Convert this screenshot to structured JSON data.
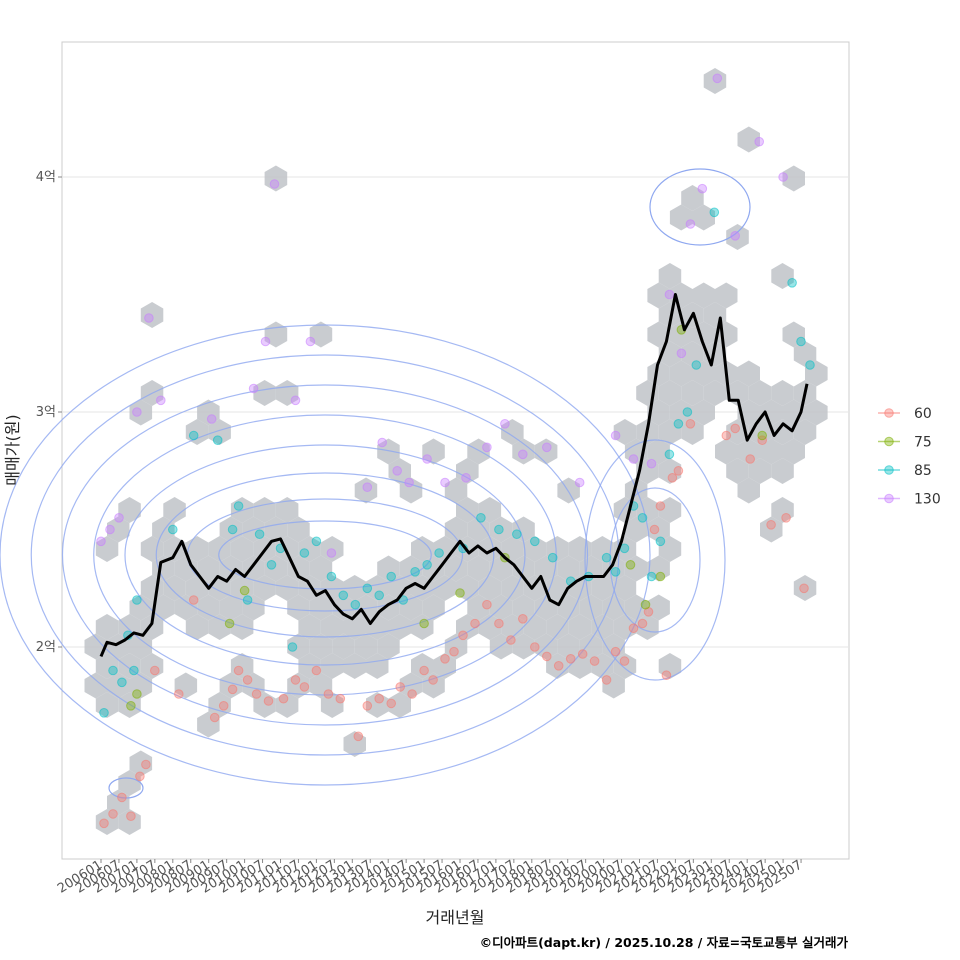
{
  "chart_data": {
    "type": "scatter",
    "title": "",
    "xlabel": "거래년월",
    "ylabel": "매매가(원)",
    "caption": "©디아파트(dapt.kr) / 2025.10.28 / 자료=국토교통부 실거래가",
    "xlim": [
      "2006-01",
      "2025-12"
    ],
    "ylim": [
      1.14,
      4.6
    ],
    "x_ticks": [
      "200601",
      "200607",
      "200701",
      "200707",
      "200801",
      "200807",
      "200901",
      "200907",
      "201001",
      "201007",
      "201101",
      "201107",
      "201201",
      "201207",
      "201301",
      "201307",
      "201401",
      "201407",
      "201501",
      "201507",
      "201601",
      "201607",
      "201701",
      "201707",
      "201801",
      "201807",
      "201901",
      "201907",
      "202001",
      "202007",
      "202101",
      "202107",
      "202201",
      "202207",
      "202301",
      "202307",
      "202401",
      "202407",
      "202501",
      "202507"
    ],
    "y_ticks": [
      {
        "value": 2,
        "label": "2억"
      },
      {
        "value": 3,
        "label": "3억"
      },
      {
        "value": 4,
        "label": "4억"
      }
    ],
    "grid": true,
    "legend": {
      "position": "right",
      "entries": [
        {
          "label": "60",
          "color": "#F8766D"
        },
        {
          "label": "75",
          "color": "#7CAE00"
        },
        {
          "label": "85",
          "color": "#00BFC4"
        },
        {
          "label": "130",
          "color": "#C77CFF"
        }
      ]
    },
    "layers": {
      "hexbin_color": "#BFC3C8",
      "contour_color": "#8FA8F0",
      "trend_color": "#000000"
    },
    "series": [
      {
        "name": "60",
        "points": [
          [
            "2006-02",
            1.25
          ],
          [
            "2006-05",
            1.29
          ],
          [
            "2006-08",
            1.36
          ],
          [
            "2006-11",
            1.28
          ],
          [
            "2007-02",
            1.45
          ],
          [
            "2007-04",
            1.5
          ],
          [
            "2007-07",
            1.9
          ],
          [
            "2008-03",
            1.8
          ],
          [
            "2008-08",
            2.2
          ],
          [
            "2009-03",
            1.7
          ],
          [
            "2009-06",
            1.75
          ],
          [
            "2009-09",
            1.82
          ],
          [
            "2009-11",
            1.9
          ],
          [
            "2010-02",
            1.86
          ],
          [
            "2010-05",
            1.8
          ],
          [
            "2010-09",
            1.77
          ],
          [
            "2011-02",
            1.78
          ],
          [
            "2011-06",
            1.86
          ],
          [
            "2011-09",
            1.83
          ],
          [
            "2012-01",
            1.9
          ],
          [
            "2012-05",
            1.8
          ],
          [
            "2012-09",
            1.78
          ],
          [
            "2013-03",
            1.62
          ],
          [
            "2013-06",
            1.75
          ],
          [
            "2013-10",
            1.78
          ],
          [
            "2014-02",
            1.76
          ],
          [
            "2014-05",
            1.83
          ],
          [
            "2014-09",
            1.8
          ],
          [
            "2015-01",
            1.9
          ],
          [
            "2015-04",
            1.86
          ],
          [
            "2015-08",
            1.95
          ],
          [
            "2015-11",
            1.98
          ],
          [
            "2016-02",
            2.05
          ],
          [
            "2016-06",
            2.1
          ],
          [
            "2016-10",
            2.18
          ],
          [
            "2017-02",
            2.1
          ],
          [
            "2017-06",
            2.03
          ],
          [
            "2017-10",
            2.12
          ],
          [
            "2018-02",
            2.0
          ],
          [
            "2018-06",
            1.96
          ],
          [
            "2018-10",
            1.92
          ],
          [
            "2019-02",
            1.95
          ],
          [
            "2019-06",
            1.97
          ],
          [
            "2019-10",
            1.94
          ],
          [
            "2020-02",
            1.86
          ],
          [
            "2020-05",
            1.98
          ],
          [
            "2020-08",
            1.94
          ],
          [
            "2020-11",
            2.08
          ],
          [
            "2021-02",
            2.1
          ],
          [
            "2021-04",
            2.15
          ],
          [
            "2021-06",
            2.5
          ],
          [
            "2021-08",
            2.6
          ],
          [
            "2021-10",
            1.88
          ],
          [
            "2021-12",
            2.72
          ],
          [
            "2022-02",
            2.75
          ],
          [
            "2022-06",
            2.95
          ],
          [
            "2023-06",
            2.9
          ],
          [
            "2023-09",
            2.93
          ],
          [
            "2024-02",
            2.8
          ],
          [
            "2024-06",
            2.88
          ],
          [
            "2024-09",
            2.52
          ],
          [
            "2025-02",
            2.55
          ],
          [
            "2025-08",
            2.25
          ]
        ]
      },
      {
        "name": "75",
        "points": [
          [
            "2006-11",
            1.75
          ],
          [
            "2007-01",
            1.8
          ],
          [
            "2009-08",
            2.1
          ],
          [
            "2010-01",
            2.24
          ],
          [
            "2015-01",
            2.1
          ],
          [
            "2016-01",
            2.23
          ],
          [
            "2017-04",
            2.38
          ],
          [
            "2020-10",
            2.35
          ],
          [
            "2021-03",
            2.18
          ],
          [
            "2021-08",
            2.3
          ],
          [
            "2022-03",
            3.35
          ],
          [
            "2024-06",
            2.9
          ]
        ]
      },
      {
        "name": "85",
        "points": [
          [
            "2006-02",
            1.72
          ],
          [
            "2006-05",
            1.9
          ],
          [
            "2006-08",
            1.85
          ],
          [
            "2006-10",
            2.05
          ],
          [
            "2006-12",
            1.9
          ],
          [
            "2007-01",
            2.2
          ],
          [
            "2008-01",
            2.5
          ],
          [
            "2008-08",
            2.9
          ],
          [
            "2009-04",
            2.88
          ],
          [
            "2009-09",
            2.5
          ],
          [
            "2009-11",
            2.6
          ],
          [
            "2010-02",
            2.2
          ],
          [
            "2010-06",
            2.48
          ],
          [
            "2010-10",
            2.35
          ],
          [
            "2011-01",
            2.42
          ],
          [
            "2011-05",
            2.0
          ],
          [
            "2011-09",
            2.4
          ],
          [
            "2012-01",
            2.45
          ],
          [
            "2012-06",
            2.3
          ],
          [
            "2012-10",
            2.22
          ],
          [
            "2013-02",
            2.18
          ],
          [
            "2013-06",
            2.25
          ],
          [
            "2013-10",
            2.22
          ],
          [
            "2014-02",
            2.3
          ],
          [
            "2014-06",
            2.2
          ],
          [
            "2014-10",
            2.32
          ],
          [
            "2015-02",
            2.35
          ],
          [
            "2015-06",
            2.4
          ],
          [
            "2016-02",
            2.42
          ],
          [
            "2016-08",
            2.55
          ],
          [
            "2017-02",
            2.5
          ],
          [
            "2017-08",
            2.48
          ],
          [
            "2018-02",
            2.45
          ],
          [
            "2018-08",
            2.38
          ],
          [
            "2019-02",
            2.28
          ],
          [
            "2019-08",
            2.3
          ],
          [
            "2020-02",
            2.38
          ],
          [
            "2020-05",
            2.32
          ],
          [
            "2020-08",
            2.42
          ],
          [
            "2020-11",
            2.6
          ],
          [
            "2021-02",
            2.55
          ],
          [
            "2021-05",
            2.3
          ],
          [
            "2021-08",
            2.45
          ],
          [
            "2021-11",
            2.82
          ],
          [
            "2022-02",
            2.95
          ],
          [
            "2022-05",
            3.0
          ],
          [
            "2022-08",
            3.2
          ],
          [
            "2023-02",
            3.85
          ],
          [
            "2025-04",
            3.55
          ],
          [
            "2025-07",
            3.3
          ],
          [
            "2025-10",
            3.2
          ]
        ]
      },
      {
        "name": "130",
        "points": [
          [
            "2006-01",
            2.45
          ],
          [
            "2006-04",
            2.5
          ],
          [
            "2006-07",
            2.55
          ],
          [
            "2007-01",
            3.0
          ],
          [
            "2007-05",
            3.4
          ],
          [
            "2007-09",
            3.05
          ],
          [
            "2009-02",
            2.97
          ],
          [
            "2010-04",
            3.1
          ],
          [
            "2010-08",
            3.3
          ],
          [
            "2010-11",
            3.97
          ],
          [
            "2011-06",
            3.05
          ],
          [
            "2011-11",
            3.3
          ],
          [
            "2012-06",
            2.4
          ],
          [
            "2013-06",
            2.68
          ],
          [
            "2013-11",
            2.87
          ],
          [
            "2014-04",
            2.75
          ],
          [
            "2014-08",
            2.7
          ],
          [
            "2015-02",
            2.8
          ],
          [
            "2015-08",
            2.7
          ],
          [
            "2016-03",
            2.72
          ],
          [
            "2016-10",
            2.85
          ],
          [
            "2017-04",
            2.95
          ],
          [
            "2017-10",
            2.82
          ],
          [
            "2018-06",
            2.85
          ],
          [
            "2019-05",
            2.7
          ],
          [
            "2020-05",
            2.9
          ],
          [
            "2020-11",
            2.8
          ],
          [
            "2021-05",
            2.78
          ],
          [
            "2021-11",
            3.5
          ],
          [
            "2022-03",
            3.25
          ],
          [
            "2022-06",
            3.8
          ],
          [
            "2022-10",
            3.95
          ],
          [
            "2023-03",
            4.42
          ],
          [
            "2023-09",
            3.75
          ],
          [
            "2024-05",
            4.15
          ],
          [
            "2025-01",
            4.0
          ]
        ]
      }
    ],
    "trend": {
      "name": "monthly trend",
      "x": [
        "2006-01",
        "2006-03",
        "2006-06",
        "2006-09",
        "2006-12",
        "2007-03",
        "2007-06",
        "2007-09",
        "2008-01",
        "2008-04",
        "2008-07",
        "2008-10",
        "2009-01",
        "2009-04",
        "2009-07",
        "2009-10",
        "2010-01",
        "2010-04",
        "2010-07",
        "2010-10",
        "2011-01",
        "2011-04",
        "2011-07",
        "2011-10",
        "2012-01",
        "2012-04",
        "2012-07",
        "2012-10",
        "2013-01",
        "2013-04",
        "2013-07",
        "2013-10",
        "2014-01",
        "2014-04",
        "2014-07",
        "2014-10",
        "2015-01",
        "2015-04",
        "2015-07",
        "2015-10",
        "2016-01",
        "2016-04",
        "2016-07",
        "2016-10",
        "2017-01",
        "2017-04",
        "2017-07",
        "2017-10",
        "2018-01",
        "2018-04",
        "2018-07",
        "2018-10",
        "2019-01",
        "2019-04",
        "2019-07",
        "2019-10",
        "2020-01",
        "2020-04",
        "2020-07",
        "2020-10",
        "2021-01",
        "2021-04",
        "2021-07",
        "2021-10",
        "2022-01",
        "2022-04",
        "2022-07",
        "2022-10",
        "2023-01",
        "2023-04",
        "2023-07",
        "2023-10",
        "2024-01",
        "2024-04",
        "2024-07",
        "2024-10",
        "2025-01",
        "2025-04",
        "2025-07",
        "2025-09"
      ],
      "values": [
        1.96,
        2.02,
        2.01,
        2.03,
        2.06,
        2.05,
        2.1,
        2.36,
        2.38,
        2.45,
        2.35,
        2.3,
        2.25,
        2.3,
        2.28,
        2.33,
        2.3,
        2.35,
        2.4,
        2.45,
        2.46,
        2.38,
        2.3,
        2.28,
        2.22,
        2.24,
        2.18,
        2.14,
        2.12,
        2.16,
        2.1,
        2.15,
        2.18,
        2.2,
        2.25,
        2.27,
        2.25,
        2.3,
        2.35,
        2.4,
        2.45,
        2.4,
        2.43,
        2.4,
        2.42,
        2.38,
        2.35,
        2.3,
        2.25,
        2.3,
        2.2,
        2.18,
        2.25,
        2.28,
        2.3,
        2.3,
        2.3,
        2.35,
        2.45,
        2.6,
        2.75,
        2.95,
        3.2,
        3.3,
        3.5,
        3.35,
        3.42,
        3.3,
        3.2,
        3.4,
        3.05,
        3.05,
        2.88,
        2.95,
        3.0,
        2.9,
        2.95,
        2.92,
        3.0,
        3.12
      ]
    }
  }
}
